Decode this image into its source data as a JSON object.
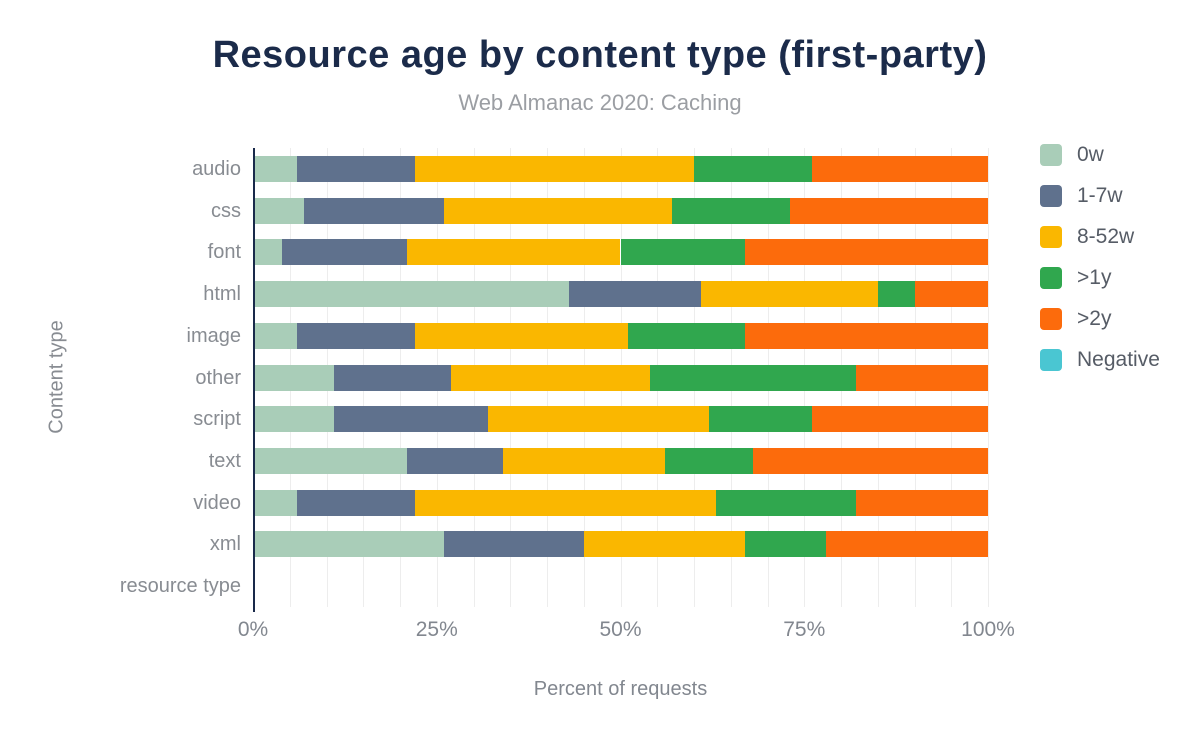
{
  "header": {
    "title": "Resource age by content type (first-party)",
    "subtitle": "Web Almanac 2020: Caching"
  },
  "chart_data": {
    "type": "bar",
    "stacked": true,
    "orientation": "horizontal",
    "title": "Resource age by content type (first-party)",
    "subtitle": "Web Almanac 2020: Caching",
    "xlabel": "Percent of requests",
    "ylabel": "Content type",
    "xlim": [
      0,
      100
    ],
    "x_tick_labels": [
      "0%",
      "25%",
      "50%",
      "75%",
      "100%"
    ],
    "x_tick_values": [
      0,
      25,
      50,
      75,
      100
    ],
    "grid": {
      "vertical_interval_percent": 5,
      "color": "#ededed"
    },
    "legend_position": "right",
    "categories": [
      "audio",
      "css",
      "font",
      "html",
      "image",
      "other",
      "script",
      "text",
      "video",
      "xml",
      "resource type"
    ],
    "series": [
      {
        "name": "0w",
        "color": "#a9cdb8",
        "values": [
          6,
          7,
          4,
          43,
          6,
          11,
          11,
          21,
          6,
          26,
          0
        ]
      },
      {
        "name": "1-7w",
        "color": "#5f718d",
        "values": [
          16,
          19,
          17,
          18,
          16,
          16,
          21,
          13,
          16,
          19,
          0
        ]
      },
      {
        "name": "8-52w",
        "color": "#fab700",
        "values": [
          38,
          31,
          29,
          24,
          29,
          27,
          30,
          22,
          41,
          22,
          0
        ]
      },
      {
        "name": ">1y",
        "color": "#30a74e",
        "values": [
          16,
          16,
          17,
          5,
          16,
          28,
          14,
          12,
          19,
          11,
          0
        ]
      },
      {
        "name": ">2y",
        "color": "#fc6b0c",
        "values": [
          24,
          27,
          33,
          10,
          33,
          18,
          24,
          32,
          18,
          22,
          0
        ]
      },
      {
        "name": "Negative",
        "color": "#4ac6d2",
        "values": [
          0,
          0,
          0,
          0,
          0,
          0,
          0,
          0,
          0,
          0,
          0
        ]
      }
    ]
  },
  "colors": {
    "title": "#1b2b4a",
    "subtitle": "#9b9ea3",
    "axis_label": "#888c92",
    "tick_label": "#82878f",
    "legend_label": "#565c66",
    "axis_line": "#19294a",
    "gridline": "#ededed"
  }
}
